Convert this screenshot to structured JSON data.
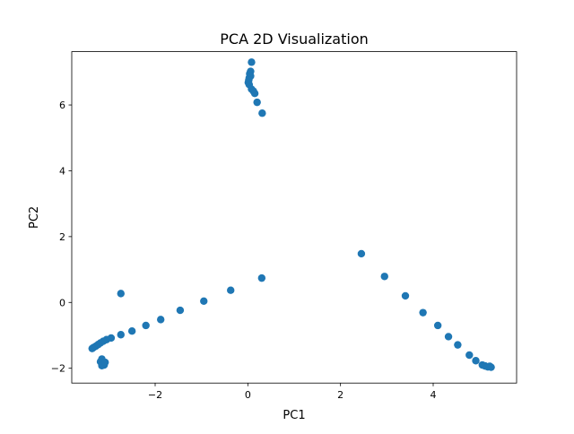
{
  "chart_data": {
    "type": "scatter",
    "title": "PCA 2D Visualization",
    "xlabel": "PC1",
    "ylabel": "PC2",
    "xlim": [
      -3.8,
      5.8
    ],
    "ylim": [
      -2.45,
      7.62
    ],
    "xticks": [
      -2,
      0,
      2,
      4
    ],
    "yticks": [
      -2,
      0,
      2,
      4,
      6
    ],
    "xtick_labels": [
      "−2",
      "0",
      "2",
      "4"
    ],
    "ytick_labels": [
      "−2",
      "0",
      "2",
      "4",
      "6"
    ],
    "grid": false,
    "marker_color": "#1f77b4",
    "series": [
      {
        "points": [
          [
            0.08,
            7.3
          ],
          [
            0.06,
            7.02
          ],
          [
            0.04,
            6.95
          ],
          [
            0.06,
            6.88
          ],
          [
            0.03,
            6.82
          ],
          [
            0.02,
            6.75
          ],
          [
            0.01,
            6.68
          ],
          [
            0.03,
            6.62
          ],
          [
            0.08,
            6.48
          ],
          [
            0.12,
            6.42
          ],
          [
            0.15,
            6.35
          ],
          [
            0.2,
            6.08
          ],
          [
            0.31,
            5.75
          ],
          [
            -2.74,
            0.27
          ],
          [
            -0.37,
            0.37
          ],
          [
            0.3,
            0.74
          ],
          [
            -0.95,
            0.04
          ],
          [
            -1.46,
            -0.24
          ],
          [
            -1.88,
            -0.52
          ],
          [
            -2.2,
            -0.7
          ],
          [
            -2.5,
            -0.87
          ],
          [
            -2.74,
            -0.98
          ],
          [
            -2.95,
            -1.08
          ],
          [
            -3.05,
            -1.13
          ],
          [
            -3.12,
            -1.18
          ],
          [
            -3.18,
            -1.23
          ],
          [
            -3.23,
            -1.28
          ],
          [
            -3.28,
            -1.33
          ],
          [
            -3.33,
            -1.37
          ],
          [
            -3.36,
            -1.4
          ],
          [
            -3.15,
            -1.72
          ],
          [
            -3.18,
            -1.8
          ],
          [
            -3.12,
            -1.85
          ],
          [
            -3.1,
            -1.9
          ],
          [
            -3.15,
            -1.92
          ],
          [
            -3.08,
            -1.82
          ],
          [
            2.45,
            1.48
          ],
          [
            2.95,
            0.79
          ],
          [
            3.4,
            0.2
          ],
          [
            3.78,
            -0.31
          ],
          [
            4.1,
            -0.7
          ],
          [
            4.33,
            -1.04
          ],
          [
            4.53,
            -1.29
          ],
          [
            4.78,
            -1.6
          ],
          [
            4.92,
            -1.77
          ],
          [
            5.06,
            -1.9
          ],
          [
            5.12,
            -1.93
          ],
          [
            5.18,
            -1.96
          ],
          [
            5.22,
            -1.94
          ],
          [
            5.25,
            -1.97
          ]
        ]
      }
    ]
  }
}
